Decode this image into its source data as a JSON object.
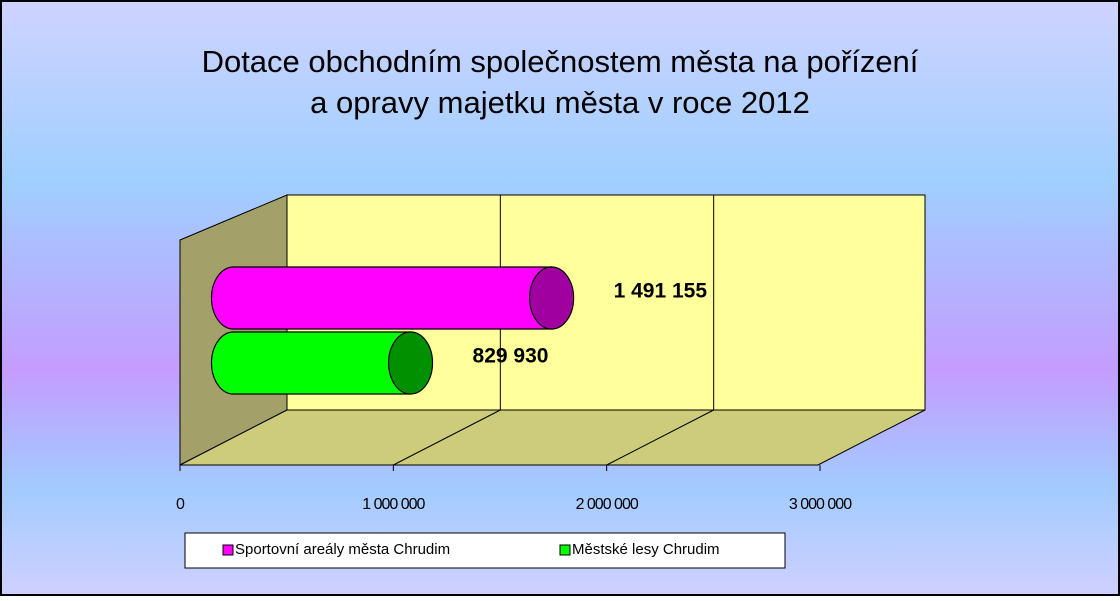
{
  "chart_data": {
    "type": "bar",
    "orientation": "horizontal",
    "title": [
      "Dotace obchodním společnostem města na pořízení",
      "a opravy majetku města v roce 2012"
    ],
    "series": [
      {
        "name": "Sportovní areály města Chrudim",
        "color": "#ff00ff",
        "values": [
          1491155
        ],
        "value_labels": [
          "1 491 155"
        ]
      },
      {
        "name": "Městské lesy Chrudim",
        "color": "#00ff00",
        "values": [
          829930
        ],
        "value_labels": [
          "829 930"
        ]
      }
    ],
    "xlim": [
      0,
      3000000
    ],
    "xticks": [
      0,
      {
        "value": 1000000,
        "label": "1 000 000"
      },
      {
        "value": 2000000,
        "label": "2 000 000"
      },
      {
        "value": 3000000,
        "label": "3 000 000"
      }
    ],
    "grid": true,
    "legend": "bottom"
  }
}
